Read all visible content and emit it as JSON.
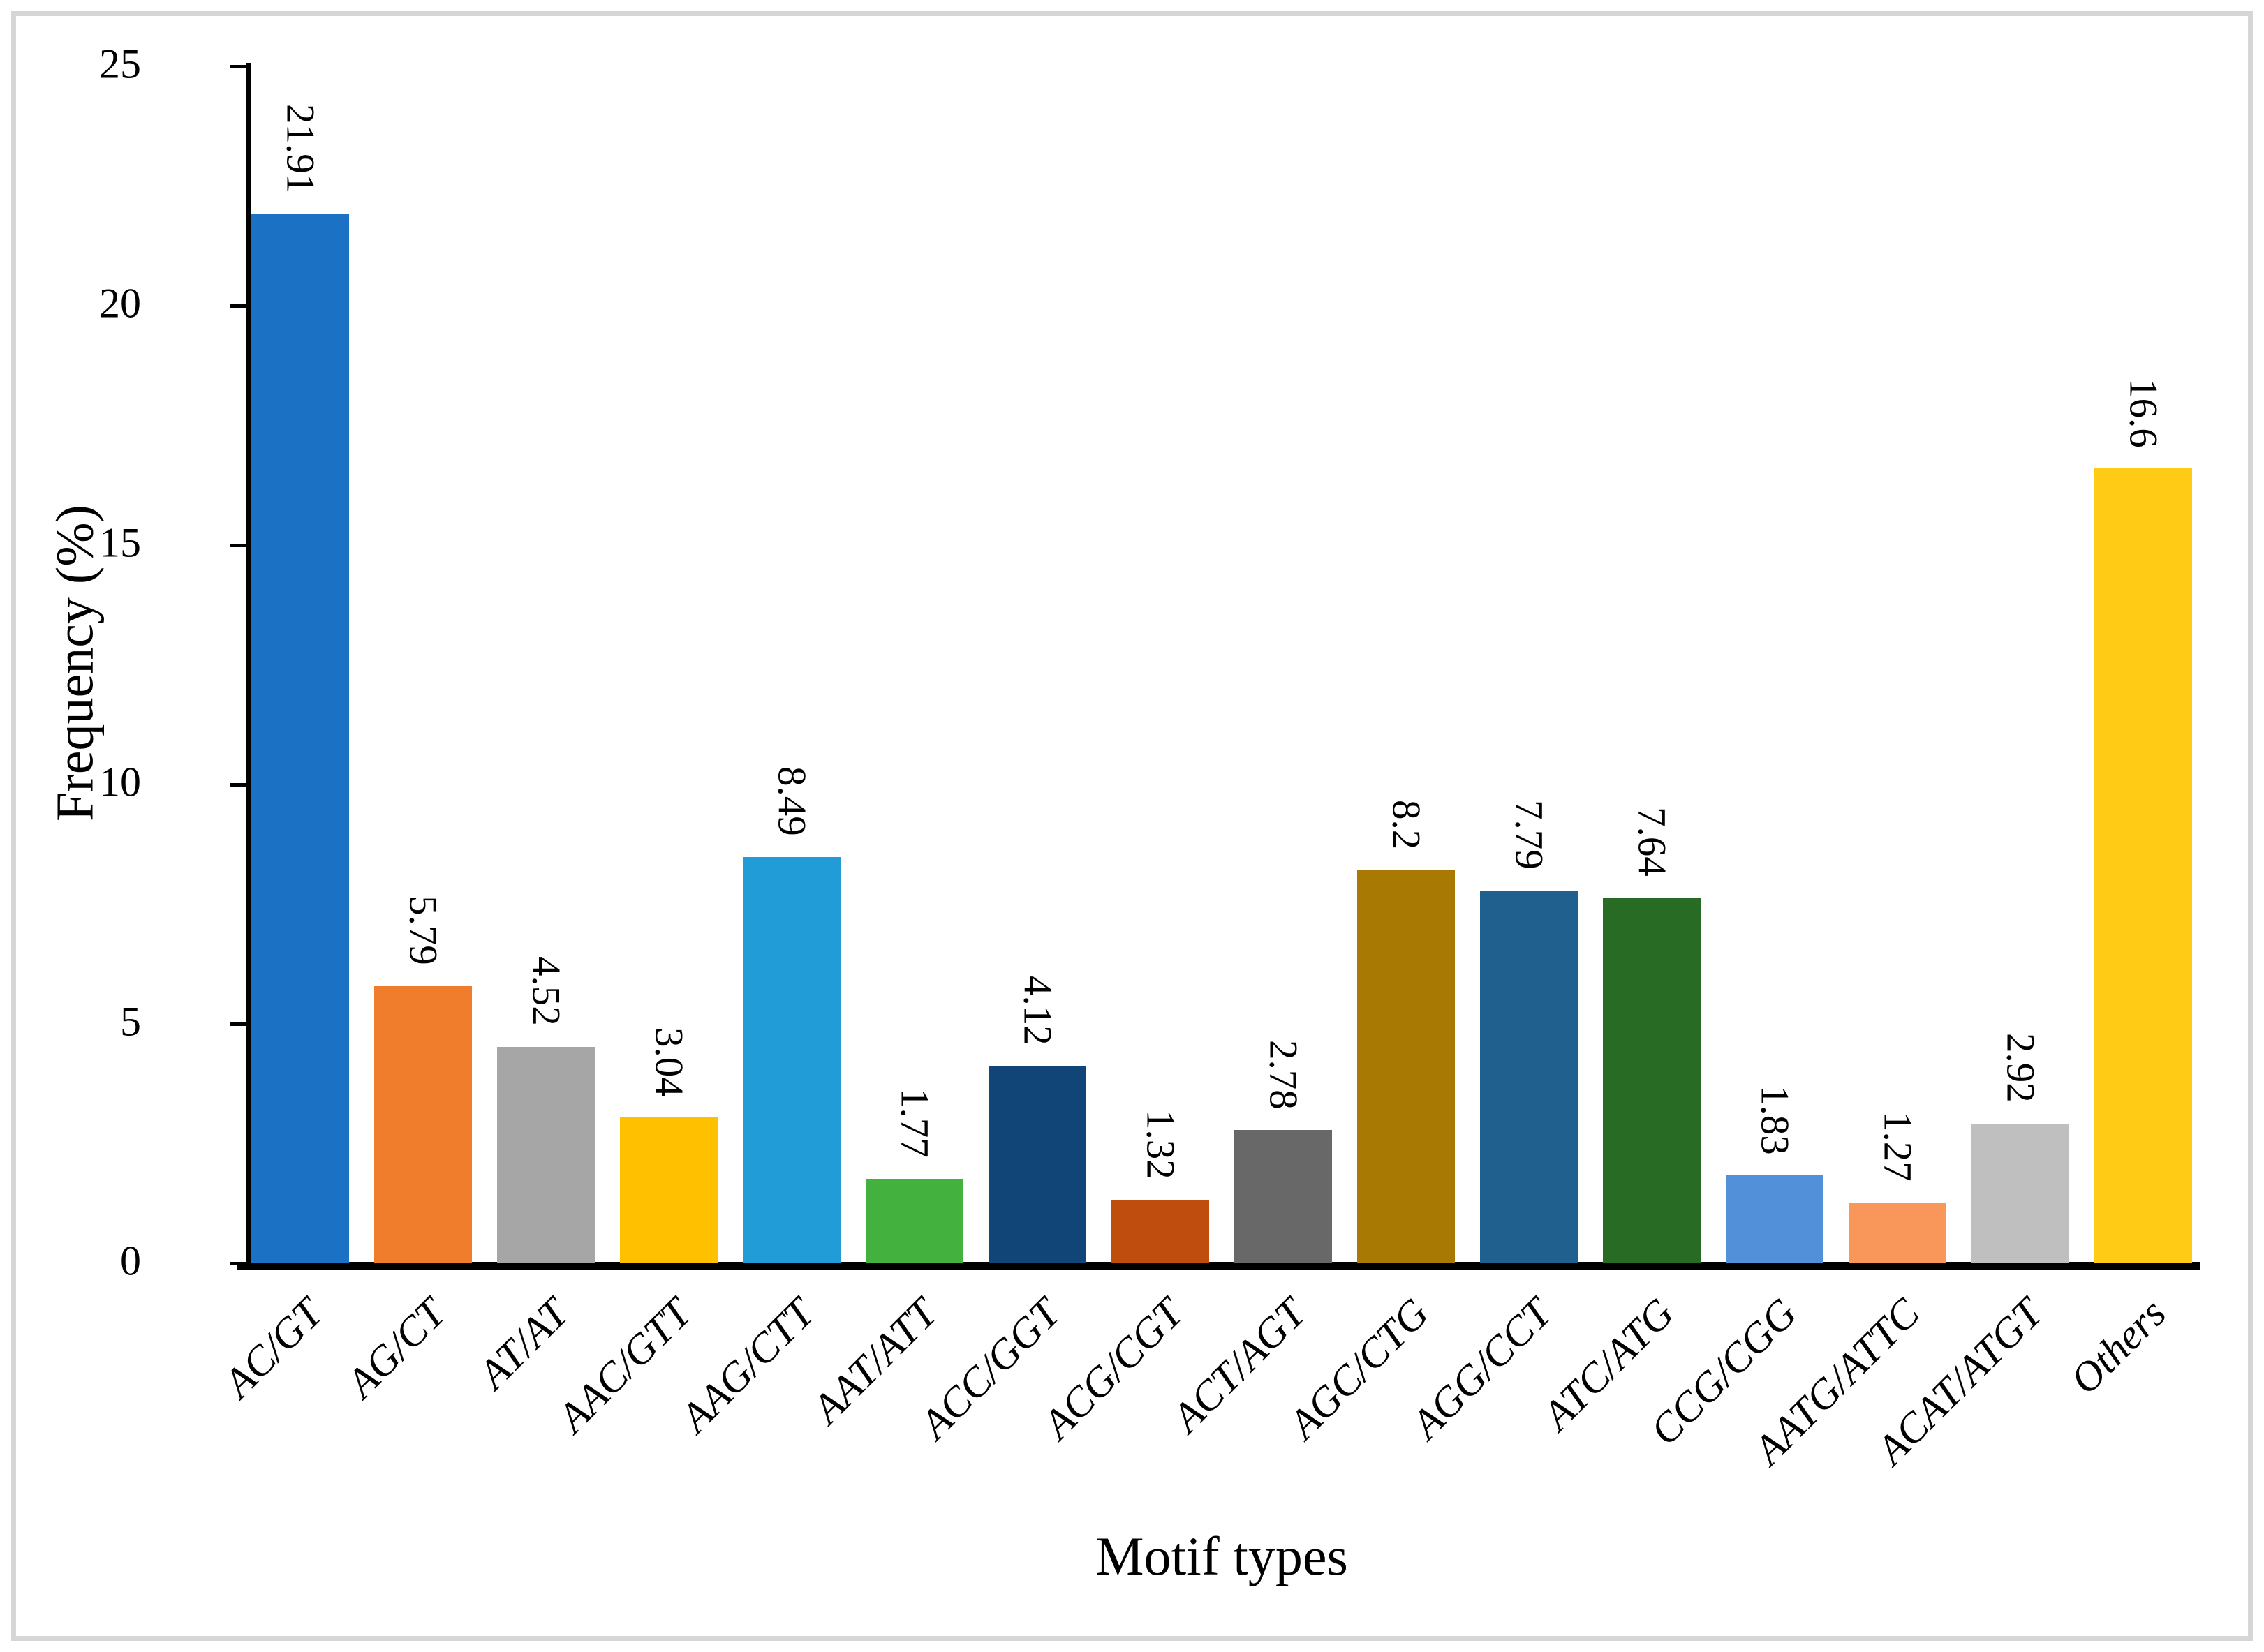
{
  "figure": {
    "background": "#ffffff",
    "border_color": "#d6d6d6"
  },
  "chart_data": {
    "type": "bar",
    "title": "",
    "xlabel": "Motif types",
    "ylabel": "Frequency (%)",
    "ylim": [
      0,
      25
    ],
    "yticks": [
      0,
      5,
      10,
      15,
      20,
      25
    ],
    "grid": false,
    "legend": false,
    "value_label_orientation": "vertical-rotated-90deg-above-bar",
    "category_label_orientation": "rotated-45deg",
    "categories": [
      "AC/GT",
      "AG/CT",
      "AT/AT",
      "AAC/GTT",
      "AAG/CTT",
      "AAT/ATT",
      "ACC/GGT",
      "ACG/CGT",
      "ACT/AGT",
      "AGC/CTG",
      "AGG/CCT",
      "ATC/ATG",
      "CCG/CGG",
      "AATG/ATTC",
      "ACAT/ATGT",
      "Others"
    ],
    "values": [
      21.91,
      5.79,
      4.52,
      3.04,
      8.49,
      1.77,
      4.12,
      1.32,
      2.78,
      8.2,
      7.79,
      7.64,
      1.83,
      1.27,
      2.92,
      16.6
    ],
    "value_labels": [
      "21.91",
      "5.79",
      "4.52",
      "3.04",
      "8.49",
      "1.77",
      "4.12",
      "1.32",
      "2.78",
      "8.2",
      "7.79",
      "7.64",
      "1.83",
      "1.27",
      "2.92",
      "16.6"
    ],
    "bar_colors": [
      "#1b72c4",
      "#f07d2b",
      "#a6a6a6",
      "#ffc000",
      "#219cd7",
      "#43b13d",
      "#114578",
      "#bf4d0d",
      "#686868",
      "#a87a04",
      "#20608f",
      "#276b24",
      "#5290d9",
      "#f9975a",
      "#bfbfbf",
      "#ffcb15"
    ]
  }
}
